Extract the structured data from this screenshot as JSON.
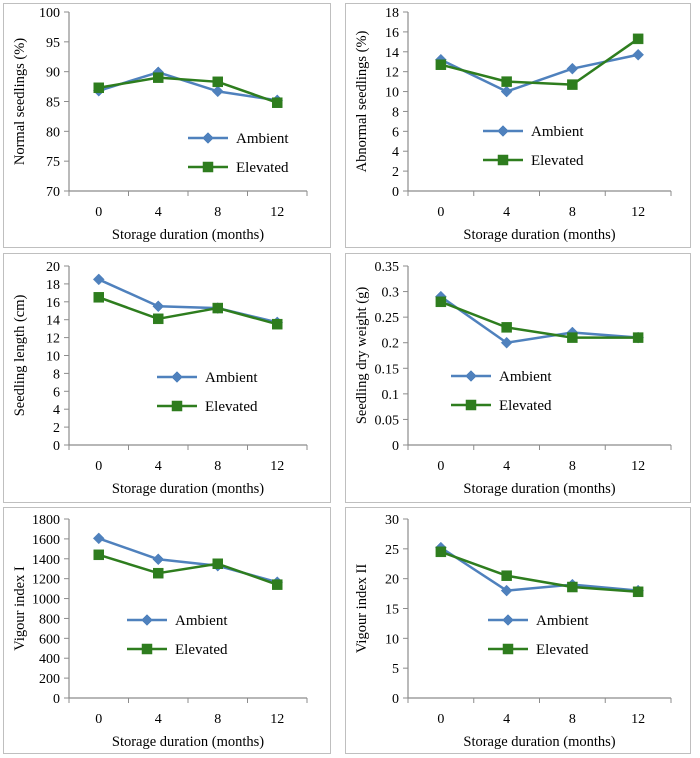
{
  "colors": {
    "ambient": "#4F81BD",
    "elevated": "#2E7D1E",
    "axis": "#8C8C8C",
    "frame": "#BFBFBF"
  },
  "chart_data": [
    {
      "type": "line",
      "panel": "top-left",
      "categories": [
        "0",
        "4",
        "8",
        "12"
      ],
      "xlabel": "Storage duration (months)",
      "ylabel": "Normal seedlings (%)",
      "ylim": [
        70,
        100
      ],
      "yticks": [
        70,
        75,
        80,
        85,
        90,
        95,
        100
      ],
      "legend_position": "center-right",
      "series": [
        {
          "name": "Ambient",
          "marker": "diamond",
          "values": [
            86.8,
            89.9,
            86.7,
            85.2
          ]
        },
        {
          "name": "Elevated",
          "marker": "square",
          "values": [
            87.3,
            89.0,
            88.3,
            84.8
          ]
        }
      ]
    },
    {
      "type": "line",
      "panel": "top-right",
      "categories": [
        "0",
        "4",
        "8",
        "12"
      ],
      "xlabel": "Storage duration (months)",
      "ylabel": "Abnormal seedlings (%)",
      "ylim": [
        0,
        18
      ],
      "yticks": [
        0,
        2,
        4,
        6,
        8,
        10,
        12,
        14,
        16,
        18
      ],
      "legend_position": "center-right",
      "series": [
        {
          "name": "Ambient",
          "marker": "diamond",
          "values": [
            13.2,
            10.0,
            12.3,
            13.7
          ]
        },
        {
          "name": "Elevated",
          "marker": "square",
          "values": [
            12.7,
            11.0,
            10.7,
            15.3
          ]
        }
      ]
    },
    {
      "type": "line",
      "panel": "middle-left",
      "categories": [
        "0",
        "4",
        "8",
        "12"
      ],
      "xlabel": "Storage duration (months)",
      "ylabel": "Seedling length (cm)",
      "ylim": [
        0,
        20
      ],
      "yticks": [
        0,
        2,
        4,
        6,
        8,
        10,
        12,
        14,
        16,
        18,
        20
      ],
      "legend_position": "center-right",
      "series": [
        {
          "name": "Ambient",
          "marker": "diamond",
          "values": [
            18.5,
            15.5,
            15.3,
            13.7
          ]
        },
        {
          "name": "Elevated",
          "marker": "square",
          "values": [
            16.5,
            14.1,
            15.3,
            13.5
          ]
        }
      ]
    },
    {
      "type": "line",
      "panel": "middle-right",
      "categories": [
        "0",
        "4",
        "8",
        "12"
      ],
      "xlabel": "Storage duration (months)",
      "ylabel": "Seedling dry weight (g)",
      "ylim": [
        0,
        0.35
      ],
      "yticks": [
        0,
        0.05,
        0.1,
        0.15,
        0.2,
        0.25,
        0.3,
        0.35
      ],
      "legend_position": "center-right",
      "series": [
        {
          "name": "Ambient",
          "marker": "diamond",
          "values": [
            0.29,
            0.2,
            0.22,
            0.21
          ]
        },
        {
          "name": "Elevated",
          "marker": "square",
          "values": [
            0.28,
            0.23,
            0.21,
            0.21
          ]
        }
      ]
    },
    {
      "type": "line",
      "panel": "bottom-left",
      "categories": [
        "0",
        "4",
        "8",
        "12"
      ],
      "xlabel": "Storage duration (months)",
      "ylabel": "Vigour index I",
      "ylim": [
        0,
        1800
      ],
      "yticks": [
        0,
        200,
        400,
        600,
        800,
        1000,
        1200,
        1400,
        1600,
        1800
      ],
      "legend_position": "center",
      "series": [
        {
          "name": "Ambient",
          "marker": "diamond",
          "values": [
            1605,
            1395,
            1330,
            1165
          ]
        },
        {
          "name": "Elevated",
          "marker": "square",
          "values": [
            1440,
            1255,
            1350,
            1140
          ]
        }
      ]
    },
    {
      "type": "line",
      "panel": "bottom-right",
      "categories": [
        "0",
        "4",
        "8",
        "12"
      ],
      "xlabel": "Storage duration (months)",
      "ylabel": "Vigour index II",
      "ylim": [
        0,
        30
      ],
      "yticks": [
        0,
        5,
        10,
        15,
        20,
        25,
        30
      ],
      "legend_position": "center-right",
      "series": [
        {
          "name": "Ambient",
          "marker": "diamond",
          "values": [
            25.2,
            18.0,
            19.0,
            18.0
          ]
        },
        {
          "name": "Elevated",
          "marker": "square",
          "values": [
            24.5,
            20.5,
            18.6,
            17.8
          ]
        }
      ]
    }
  ]
}
